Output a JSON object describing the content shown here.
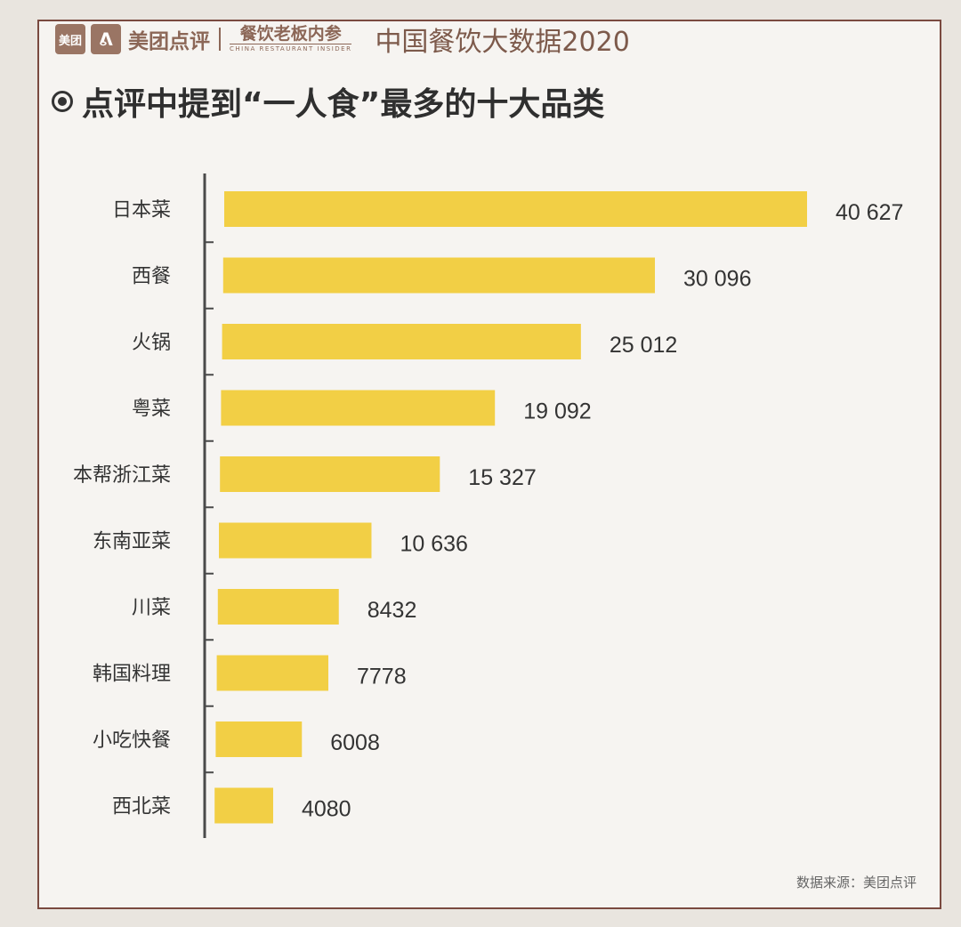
{
  "header": {
    "logo_small": "美团",
    "logo_icon": "ᕕ",
    "brand": "美团点评",
    "brand2_cn": "餐饮老板内参",
    "brand2_en": "CHINA RESTAURANT INSIDER",
    "report_title": "中国餐饮大数据2020"
  },
  "footer": {
    "source": "数据来源：美团点评"
  },
  "colors": {
    "bar": "#f2cf45",
    "axis": "#4a4a4a",
    "text": "#333333"
  },
  "chart_data": {
    "type": "bar",
    "orientation": "horizontal",
    "title": "点评中提到“一人食”最多的十大品类",
    "categories": [
      "日本菜",
      "西餐",
      "火锅",
      "粤菜",
      "本帮浙江菜",
      "东南亚菜",
      "川菜",
      "韩国料理",
      "小吃快餐",
      "西北菜"
    ],
    "values": [
      40627,
      30096,
      25012,
      19092,
      15327,
      10636,
      8432,
      7778,
      6008,
      4080
    ],
    "value_labels": [
      "40 627",
      "30 096",
      "25 012",
      "19 092",
      "15 327",
      "10 636",
      "8432",
      "7778",
      "6008",
      "4080"
    ],
    "xlim": [
      0,
      40627
    ],
    "grid": false,
    "legend": "none"
  }
}
